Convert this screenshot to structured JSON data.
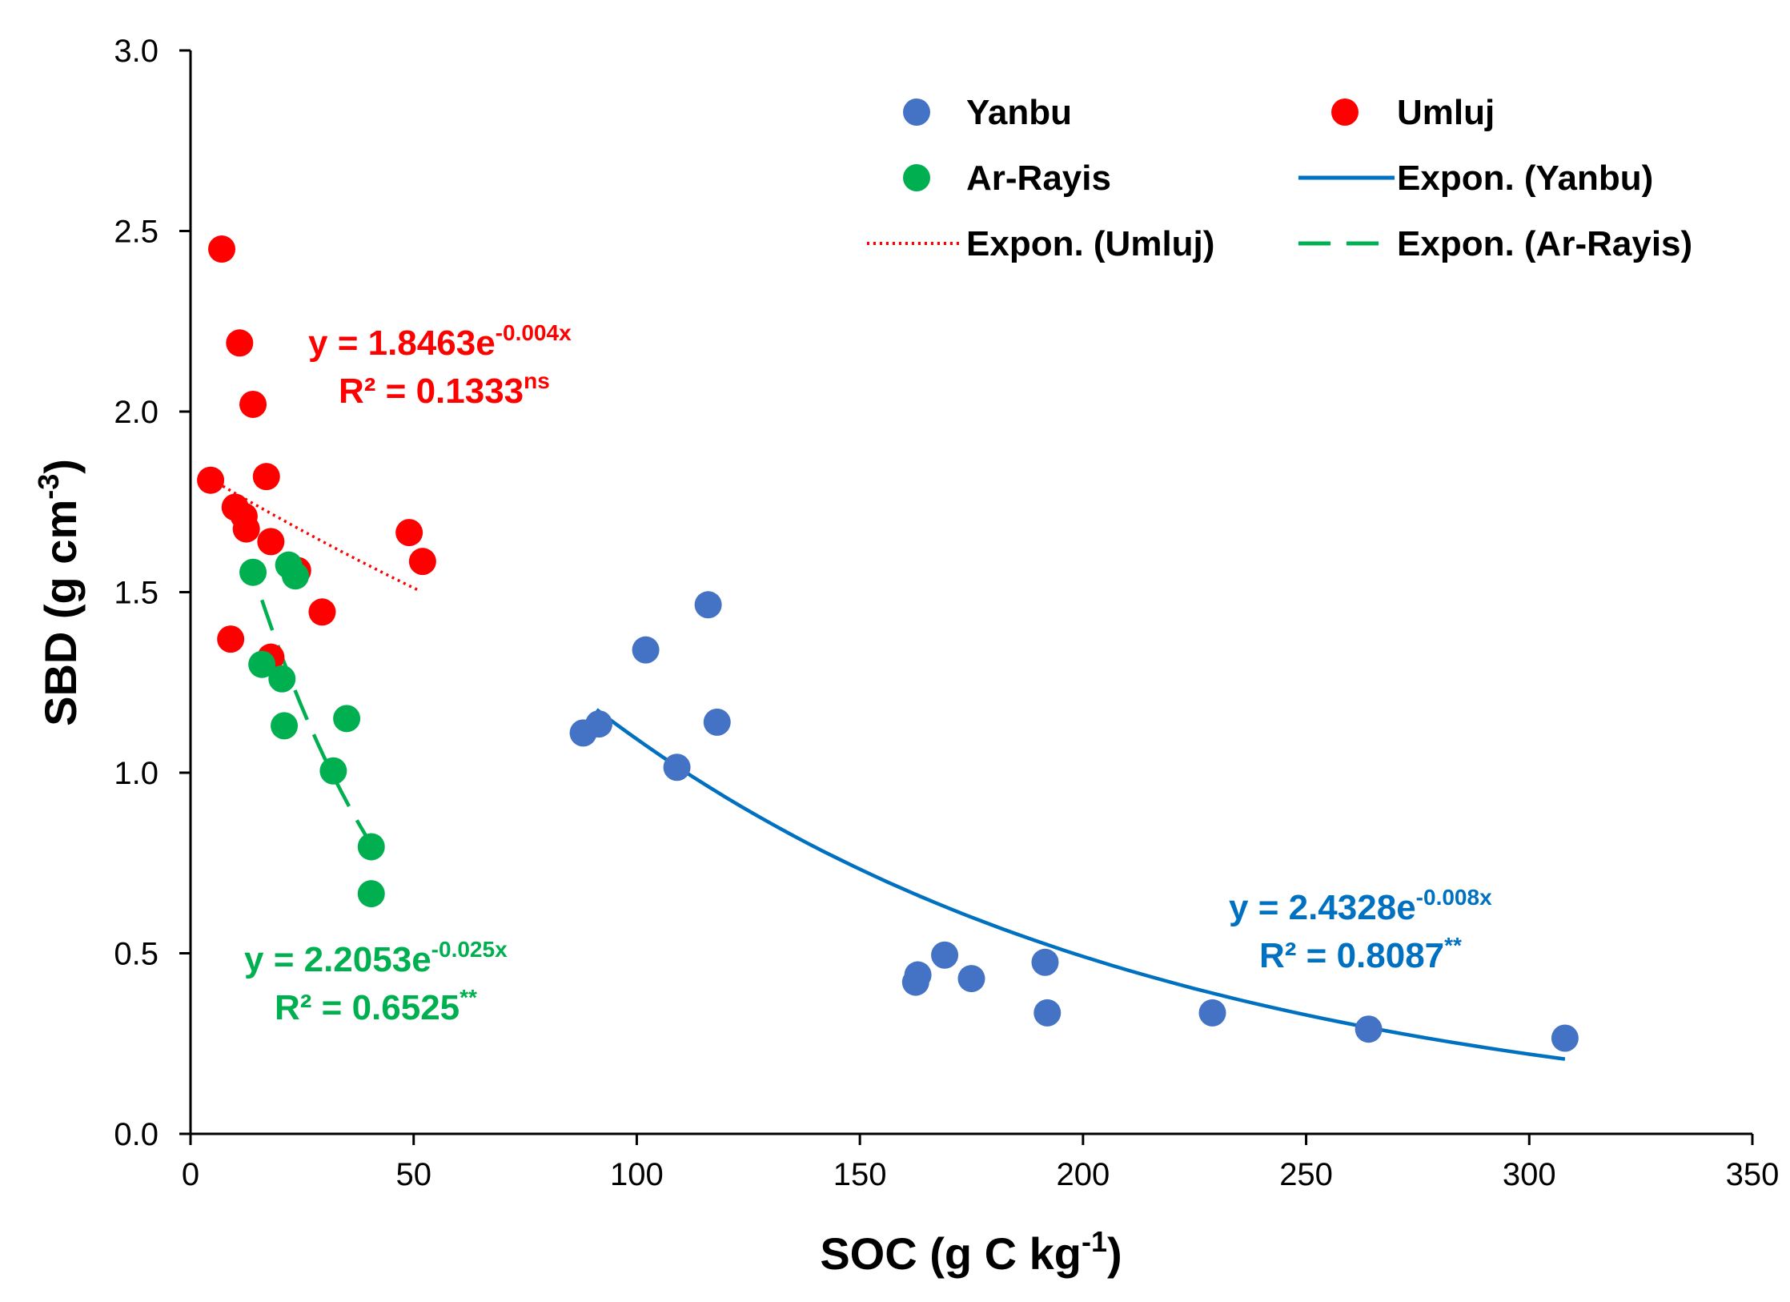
{
  "chart_data": {
    "type": "scatter",
    "xlabel": "SOC (g C kg",
    "xlabel_sup": "-1",
    "xlabel_close": ")",
    "ylabel": "SBD (g cm",
    "ylabel_sup": "-3",
    "ylabel_close": ")",
    "xlim": [
      0,
      350
    ],
    "ylim": [
      0,
      3.0
    ],
    "x_ticks": [
      "0",
      "50",
      "100",
      "150",
      "200",
      "250",
      "300",
      "350"
    ],
    "y_ticks": [
      "0.0",
      "0.5",
      "1.0",
      "1.5",
      "2.0",
      "2.5",
      "3.0"
    ],
    "grid": false,
    "legend_position": "top-right",
    "series": [
      {
        "name": "Yanbu",
        "color": "#4472C4",
        "points": [
          [
            88,
            1.11
          ],
          [
            91.5,
            1.135
          ],
          [
            102,
            1.34
          ],
          [
            109,
            1.015
          ],
          [
            116,
            1.465
          ],
          [
            118,
            1.14
          ],
          [
            162.5,
            0.42
          ],
          [
            163,
            0.44
          ],
          [
            169,
            0.495
          ],
          [
            175,
            0.43
          ],
          [
            191.5,
            0.475
          ],
          [
            192,
            0.335
          ],
          [
            229,
            0.335
          ],
          [
            264,
            0.29
          ],
          [
            308,
            0.265
          ]
        ]
      },
      {
        "name": "Umluj",
        "color": "#FF0000",
        "points": [
          [
            4.5,
            1.81
          ],
          [
            7,
            2.45
          ],
          [
            9,
            1.37
          ],
          [
            10,
            1.735
          ],
          [
            11,
            2.19
          ],
          [
            12,
            1.71
          ],
          [
            12.5,
            1.675
          ],
          [
            14,
            2.02
          ],
          [
            17,
            1.82
          ],
          [
            18,
            1.64
          ],
          [
            18,
            1.32
          ],
          [
            24,
            1.56
          ],
          [
            29.5,
            1.445
          ],
          [
            49,
            1.665
          ],
          [
            52,
            1.585
          ]
        ]
      },
      {
        "name": "Ar-Rayis",
        "color": "#00B050",
        "points": [
          [
            14,
            1.555
          ],
          [
            16,
            1.3
          ],
          [
            20.5,
            1.26
          ],
          [
            21,
            1.13
          ],
          [
            22,
            1.575
          ],
          [
            23.5,
            1.545
          ],
          [
            32,
            1.005
          ],
          [
            35,
            1.15
          ],
          [
            40.5,
            0.795
          ],
          [
            40.5,
            0.665
          ]
        ]
      }
    ],
    "trendlines": [
      {
        "name": "Expon. (Yanbu)",
        "a": 2.4328,
        "b": -0.008,
        "x_range": [
          91,
          308
        ],
        "color": "#0070C0",
        "style": "solid"
      },
      {
        "name": "Expon. (Umluj)",
        "a": 1.8463,
        "b": -0.004,
        "x_range": [
          6,
          51
        ],
        "color": "#FF0000",
        "style": "dotted"
      },
      {
        "name": "Expon. (Ar-Rayis)",
        "a": 2.2053,
        "b": -0.025,
        "x_range": [
          16,
          40
        ],
        "color": "#00B050",
        "style": "dashed"
      }
    ],
    "annotations": {
      "umluj": {
        "eq_main": "y = 1.8463e",
        "eq_sup": "-0.004x",
        "r2_main": "R² = 0.1333",
        "r2_sup": "ns",
        "color": "#FF0000"
      },
      "arrayis": {
        "eq_main": "y = 2.2053e",
        "eq_sup": "-0.025x",
        "r2_main": "R² = 0.6525",
        "r2_sup": "**",
        "color": "#00B050"
      },
      "yanbu": {
        "eq_main": "y = 2.4328e",
        "eq_sup": "-0.008x",
        "r2_main": "R² = 0.8087",
        "r2_sup": "**",
        "color": "#0070C0"
      }
    },
    "legend": {
      "yanbu": "Yanbu",
      "umluj": "Umluj",
      "arrayis": "Ar-Rayis",
      "expon_yanbu": "Expon. (Yanbu)",
      "expon_umluj": "Expon. (Umluj)",
      "expon_arrayis": "Expon. (Ar-Rayis)"
    }
  }
}
